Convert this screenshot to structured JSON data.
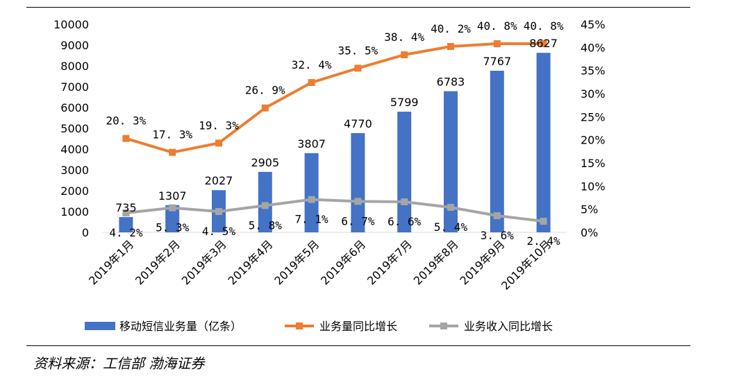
{
  "source": "资料来源：工信部 渤海证券",
  "colors": {
    "bar": "#4472C4",
    "business_growth": "#ED7D31",
    "revenue_growth": "#A5A5A5"
  },
  "chart_data": {
    "type": "bar",
    "categories": [
      "2019年1月",
      "2019年2月",
      "2019年3月",
      "2019年4月",
      "2019年5月",
      "2019年6月",
      "2019年7月",
      "2019年8月",
      "2019年9月",
      "2019年10月"
    ],
    "series": [
      {
        "name": "移动短信业务量（亿条）",
        "type": "bar",
        "axis": "left",
        "values": [
          735,
          1307,
          2027,
          2905,
          3807,
          4770,
          5799,
          6783,
          7767,
          8627
        ],
        "labels": [
          "735",
          "1307",
          "2027",
          "2905",
          "3807",
          "4770",
          "5799",
          "6783",
          "7767",
          "8627"
        ]
      },
      {
        "name": "业务量同比增长",
        "type": "line",
        "axis": "right",
        "values": [
          20.3,
          17.3,
          19.3,
          26.9,
          32.4,
          35.5,
          38.4,
          40.2,
          40.8,
          40.8
        ],
        "labels": [
          "20. 3%",
          "17. 3%",
          "19. 3%",
          "26. 9%",
          "32. 4%",
          "35. 5%",
          "38. 4%",
          "40. 2%",
          "40. 8%",
          "40. 8%"
        ]
      },
      {
        "name": "业务收入同比增长",
        "type": "line",
        "axis": "right",
        "values": [
          4.2,
          5.3,
          4.5,
          5.8,
          7.1,
          6.7,
          6.6,
          5.4,
          3.6,
          2.4
        ],
        "labels": [
          "4. 2%",
          "5. 3%",
          "4. 5%",
          "5. 8%",
          "7. 1%",
          "6. 7%",
          "6. 6%",
          "5. 4%",
          "3. 6%",
          "2. 4%"
        ]
      }
    ],
    "y_left": {
      "ylim": [
        0,
        10000
      ],
      "ticks": [
        "0",
        "1000",
        "2000",
        "3000",
        "4000",
        "5000",
        "6000",
        "7000",
        "8000",
        "9000",
        "10000"
      ]
    },
    "y_right": {
      "ylim": [
        0,
        45
      ],
      "ticks": [
        "0%",
        "5%",
        "10%",
        "15%",
        "20%",
        "25%",
        "30%",
        "35%",
        "40%",
        "45%"
      ]
    },
    "grid": false,
    "legend": "bottom"
  }
}
